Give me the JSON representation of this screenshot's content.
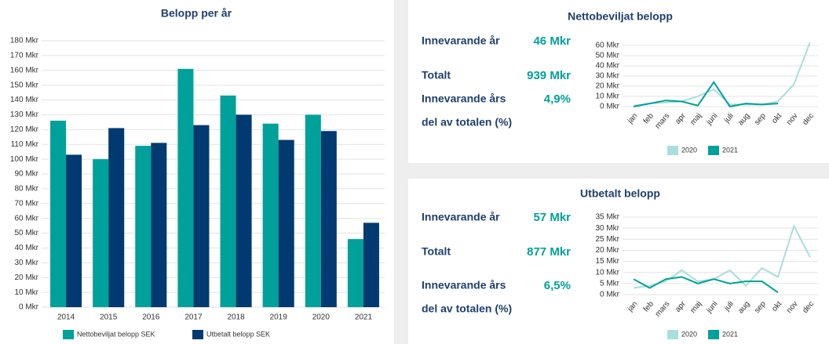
{
  "chart_data": [
    {
      "type": "bar",
      "title": "Belopp per år",
      "categories": [
        "2014",
        "2015",
        "2016",
        "2017",
        "2018",
        "2019",
        "2020",
        "2021"
      ],
      "series": [
        {
          "name": "Nettobeviljat belopp SEK",
          "color": "#00a19a",
          "values": [
            126,
            100,
            109,
            161,
            143,
            124,
            130,
            46
          ]
        },
        {
          "name": "Utbetalt belopp SEK",
          "color": "#003a70",
          "values": [
            103,
            121,
            111,
            123,
            130,
            113,
            119,
            57
          ]
        }
      ],
      "ylim": [
        0,
        180
      ],
      "yticks": [
        {
          "value": 0,
          "label": "0 Mkr"
        },
        {
          "value": 10,
          "label": "10 Mkr"
        },
        {
          "value": 20,
          "label": "20 Mkr"
        },
        {
          "value": 30,
          "label": "30 Mkr"
        },
        {
          "value": 40,
          "label": "40 Mkr"
        },
        {
          "value": 50,
          "label": "50 Mkr"
        },
        {
          "value": 60,
          "label": "60 Mkr"
        },
        {
          "value": 70,
          "label": "70 Mkr"
        },
        {
          "value": 80,
          "label": "80 Mkr"
        },
        {
          "value": 90,
          "label": "90 Mkr"
        },
        {
          "value": 100,
          "label": "100 Mkr"
        },
        {
          "value": 110,
          "label": "110 Mkr"
        },
        {
          "value": 120,
          "label": "120 Mkr"
        },
        {
          "value": 130,
          "label": "130 Mkr"
        },
        {
          "value": 140,
          "label": "140 Mkr"
        },
        {
          "value": 150,
          "label": "150 Mkr"
        },
        {
          "value": 160,
          "label": "160 Mkr"
        },
        {
          "value": 170,
          "label": "170 Mkr"
        },
        {
          "value": 180,
          "label": "180 Mkr"
        }
      ],
      "grid": true
    },
    {
      "type": "line",
      "title": "Nettobeviljat belopp",
      "kpis": [
        {
          "label": [
            "Innevarande år"
          ],
          "value": "46 Mkr"
        },
        {
          "label": [
            "Totalt"
          ],
          "value": "939 Mkr"
        },
        {
          "label": [
            "Innevarande års",
            "del av totalen (%)"
          ],
          "value": "4,9%"
        }
      ],
      "categories": [
        "jan",
        "feb",
        "mars",
        "apr",
        "maj",
        "juni",
        "juli",
        "aug",
        "sep",
        "okt",
        "nov",
        "dec"
      ],
      "series": [
        {
          "name": "2020",
          "color": "#a8dedc",
          "values": [
            1,
            3,
            4,
            5,
            10,
            17,
            2,
            2,
            2,
            5,
            22,
            63
          ]
        },
        {
          "name": "2021",
          "color": "#00a19a",
          "values": [
            0,
            3,
            6,
            5,
            1,
            24,
            0,
            3,
            2,
            3,
            null,
            null
          ]
        }
      ],
      "ylim": [
        0,
        60
      ],
      "yticks": [
        {
          "value": 0,
          "label": "0 Mkr"
        },
        {
          "value": 10,
          "label": "10 Mkr"
        },
        {
          "value": 20,
          "label": "20 Mkr"
        },
        {
          "value": 30,
          "label": "30 Mkr"
        },
        {
          "value": 40,
          "label": "40 Mkr"
        },
        {
          "value": 50,
          "label": "50 Mkr"
        },
        {
          "value": 60,
          "label": "60 Mkr"
        }
      ],
      "grid": true
    },
    {
      "type": "line",
      "title": "Utbetalt belopp",
      "kpis": [
        {
          "label": [
            "Innevarande år"
          ],
          "value": "57 Mkr"
        },
        {
          "label": [
            "Totalt"
          ],
          "value": "877 Mkr"
        },
        {
          "label": [
            "Innevarande års",
            "del av totalen (%)"
          ],
          "value": "6,5%"
        }
      ],
      "categories": [
        "jan",
        "feb",
        "mars",
        "apr",
        "maj",
        "juni",
        "juli",
        "aug",
        "sep",
        "okt",
        "nov",
        "dec"
      ],
      "series": [
        {
          "name": "2020",
          "color": "#a8dedc",
          "values": [
            3,
            4,
            6,
            11,
            6,
            7,
            11,
            4,
            12,
            8,
            31,
            17
          ]
        },
        {
          "name": "2021",
          "color": "#00a19a",
          "values": [
            7,
            3,
            7,
            8,
            5,
            7,
            5,
            6,
            6,
            1,
            null,
            null
          ]
        }
      ],
      "ylim": [
        0,
        35
      ],
      "yticks": [
        {
          "value": 0,
          "label": "0 Mkr"
        },
        {
          "value": 5,
          "label": "5 Mkr"
        },
        {
          "value": 10,
          "label": "10 Mkr"
        },
        {
          "value": 15,
          "label": "15 Mkr"
        },
        {
          "value": 20,
          "label": "20 Mkr"
        },
        {
          "value": 25,
          "label": "25 Mkr"
        },
        {
          "value": 30,
          "label": "30 Mkr"
        },
        {
          "value": 35,
          "label": "35 Mkr"
        }
      ],
      "grid": true
    }
  ]
}
